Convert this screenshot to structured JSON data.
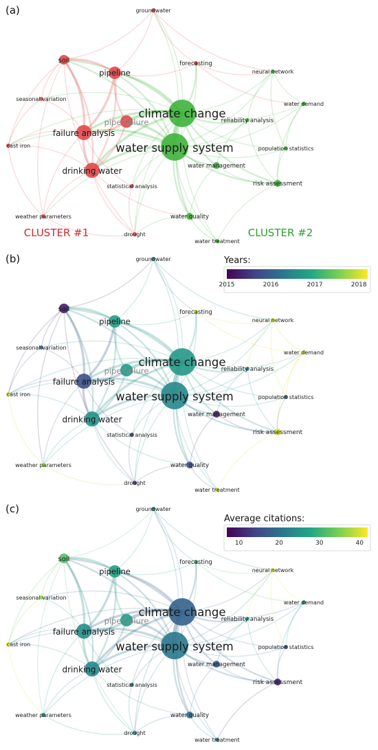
{
  "panels": [
    {
      "id": "a",
      "label": "(a)",
      "mode": "cluster",
      "legend": null,
      "cluster_labels": [
        {
          "text": "CLUSTER #1",
          "color": "#d62728"
        },
        {
          "text": "CLUSTER #2",
          "color": "#2ca02c"
        }
      ]
    },
    {
      "id": "b",
      "label": "(b)",
      "mode": "value_years",
      "legend": {
        "title": "Years:",
        "min": 2015,
        "max": 2018.2,
        "ticks": [
          "2015",
          "2016",
          "2017",
          "2018"
        ],
        "tick_values": [
          2015,
          2016,
          2017,
          2018
        ]
      }
    },
    {
      "id": "c",
      "label": "(c)",
      "mode": "value_citations",
      "legend": {
        "title": "Average citations:",
        "min": 7,
        "max": 42,
        "ticks": [
          "10",
          "20",
          "30",
          "40"
        ],
        "tick_values": [
          10,
          20,
          30,
          40
        ]
      }
    }
  ],
  "colors": {
    "cluster1": "#e0484b",
    "cluster2": "#3fb33c",
    "viridis": [
      "#440154",
      "#414487",
      "#2a788e",
      "#22a884",
      "#7ad151",
      "#fde725"
    ]
  },
  "nodes": [
    {
      "id": "climate-change",
      "label": "climate change",
      "cluster": 2,
      "weight": 10,
      "year": 2016.7,
      "citations": 18
    },
    {
      "id": "water-supply-system",
      "label": "water supply system",
      "cluster": 2,
      "weight": 10,
      "year": 2016.5,
      "citations": 21
    },
    {
      "id": "failure-analysis",
      "label": "failure analysis",
      "cluster": 1,
      "weight": 6,
      "year": 2015.8,
      "citations": 24
    },
    {
      "id": "drinking-water",
      "label": "drinking water",
      "cluster": 1,
      "weight": 6,
      "year": 2016.6,
      "citations": 23
    },
    {
      "id": "pipe-failure",
      "label": "pipe failure",
      "cluster": 1,
      "weight": 5,
      "year": 2016.7,
      "citations": 26
    },
    {
      "id": "pipeline",
      "label": "pipeline",
      "cluster": 1,
      "weight": 5,
      "year": 2016.8,
      "citations": 27
    },
    {
      "id": "soil",
      "label": "soil",
      "cluster": 1,
      "weight": 4,
      "year": 2015.3,
      "citations": 32
    },
    {
      "id": "groundwater",
      "label": "groundwater",
      "cluster": 1,
      "weight": 2,
      "year": 2016.5,
      "citations": 23
    },
    {
      "id": "forecasting",
      "label": "forecasting",
      "cluster": 1,
      "weight": 2,
      "year": 2018.0,
      "citations": 31
    },
    {
      "id": "seasonal-variation",
      "label": "seasonal variation",
      "cluster": 1,
      "weight": 2,
      "year": 2015.9,
      "citations": 36
    },
    {
      "id": "cast-iron",
      "label": "cast iron",
      "cluster": 1,
      "weight": 2,
      "year": 2018.0,
      "citations": 41
    },
    {
      "id": "statistical-analysis",
      "label": "statistical analysis",
      "cluster": 1,
      "weight": 2,
      "year": 2015.9,
      "citations": 22
    },
    {
      "id": "weather-parameters",
      "label": "weather parameters",
      "cluster": 1,
      "weight": 2,
      "year": 2017.8,
      "citations": 24
    },
    {
      "id": "drought",
      "label": "drought",
      "cluster": 1,
      "weight": 2,
      "year": 2015.5,
      "citations": 24
    },
    {
      "id": "neural-network",
      "label": "neural network",
      "cluster": 2,
      "weight": 2,
      "year": 2017.9,
      "citations": 40
    },
    {
      "id": "water-demand",
      "label": "water demand",
      "cluster": 2,
      "weight": 2,
      "year": 2018.0,
      "citations": 25
    },
    {
      "id": "reliability-analysis",
      "label": "reliability analysis",
      "cluster": 2,
      "weight": 2,
      "year": 2016.5,
      "citations": 26
    },
    {
      "id": "population-statistics",
      "label": "population statistics",
      "cluster": 2,
      "weight": 2,
      "year": 2016.0,
      "citations": 14
    },
    {
      "id": "water-management",
      "label": "water management",
      "cluster": 2,
      "weight": 3,
      "year": 2015.3,
      "citations": 16
    },
    {
      "id": "risk-assessment",
      "label": "risk assessment",
      "cluster": 2,
      "weight": 3,
      "year": 2018.0,
      "citations": 10
    },
    {
      "id": "water-quality",
      "label": "water quality",
      "cluster": 2,
      "weight": 3,
      "year": 2015.8,
      "citations": 20
    },
    {
      "id": "water-treatment",
      "label": "water treatment",
      "cluster": 2,
      "weight": 2,
      "year": 2018.0,
      "citations": 22
    }
  ],
  "edges": [
    [
      "climate-change",
      "water-supply-system",
      5
    ],
    [
      "climate-change",
      "pipe-failure",
      4
    ],
    [
      "climate-change",
      "failure-analysis",
      3
    ],
    [
      "climate-change",
      "pipeline",
      3
    ],
    [
      "climate-change",
      "drinking-water",
      3
    ],
    [
      "climate-change",
      "soil",
      2
    ],
    [
      "climate-change",
      "forecasting",
      2
    ],
    [
      "climate-change",
      "groundwater",
      1
    ],
    [
      "climate-change",
      "neural-network",
      1
    ],
    [
      "climate-change",
      "water-demand",
      1
    ],
    [
      "climate-change",
      "reliability-analysis",
      2
    ],
    [
      "climate-change",
      "population-statistics",
      1
    ],
    [
      "climate-change",
      "water-management",
      2
    ],
    [
      "climate-change",
      "risk-assessment",
      2
    ],
    [
      "climate-change",
      "water-quality",
      2
    ],
    [
      "climate-change",
      "water-treatment",
      1
    ],
    [
      "climate-change",
      "seasonal-variation",
      1
    ],
    [
      "climate-change",
      "cast-iron",
      1
    ],
    [
      "climate-change",
      "statistical-analysis",
      1
    ],
    [
      "climate-change",
      "drought",
      1
    ],
    [
      "water-supply-system",
      "failure-analysis",
      3
    ],
    [
      "water-supply-system",
      "drinking-water",
      3
    ],
    [
      "water-supply-system",
      "pipe-failure",
      3
    ],
    [
      "water-supply-system",
      "pipeline",
      2
    ],
    [
      "water-supply-system",
      "soil",
      2
    ],
    [
      "water-supply-system",
      "water-management",
      2
    ],
    [
      "water-supply-system",
      "risk-assessment",
      2
    ],
    [
      "water-supply-system",
      "water-quality",
      2
    ],
    [
      "water-supply-system",
      "reliability-analysis",
      1
    ],
    [
      "water-supply-system",
      "population-statistics",
      1
    ],
    [
      "water-supply-system",
      "water-demand",
      1
    ],
    [
      "water-supply-system",
      "neural-network",
      1
    ],
    [
      "water-supply-system",
      "water-treatment",
      1
    ],
    [
      "water-supply-system",
      "statistical-analysis",
      1
    ],
    [
      "water-supply-system",
      "drought",
      1
    ],
    [
      "water-supply-system",
      "weather-parameters",
      1
    ],
    [
      "water-supply-system",
      "cast-iron",
      1
    ],
    [
      "water-supply-system",
      "groundwater",
      1
    ],
    [
      "water-supply-system",
      "forecasting",
      1
    ],
    [
      "failure-analysis",
      "drinking-water",
      3
    ],
    [
      "failure-analysis",
      "pipe-failure",
      3
    ],
    [
      "failure-analysis",
      "pipeline",
      3
    ],
    [
      "failure-analysis",
      "soil",
      3
    ],
    [
      "failure-analysis",
      "seasonal-variation",
      1
    ],
    [
      "failure-analysis",
      "cast-iron",
      1
    ],
    [
      "failure-analysis",
      "statistical-analysis",
      1
    ],
    [
      "failure-analysis",
      "weather-parameters",
      1
    ],
    [
      "drinking-water",
      "pipe-failure",
      2
    ],
    [
      "drinking-water",
      "pipeline",
      2
    ],
    [
      "drinking-water",
      "soil",
      2
    ],
    [
      "drinking-water",
      "drought",
      1
    ],
    [
      "drinking-water",
      "water-quality",
      1
    ],
    [
      "drinking-water",
      "weather-parameters",
      1
    ],
    [
      "drinking-water",
      "cast-iron",
      1
    ],
    [
      "pipeline",
      "soil",
      3
    ],
    [
      "pipeline",
      "pipe-failure",
      2
    ],
    [
      "pipeline",
      "groundwater",
      1
    ],
    [
      "pipeline",
      "forecasting",
      1
    ],
    [
      "soil",
      "seasonal-variation",
      1
    ],
    [
      "soil",
      "cast-iron",
      1
    ],
    [
      "soil",
      "weather-parameters",
      1
    ],
    [
      "soil",
      "groundwater",
      1
    ],
    [
      "soil",
      "drought",
      1
    ],
    [
      "groundwater",
      "forecasting",
      1
    ],
    [
      "groundwater",
      "neural-network",
      1
    ],
    [
      "forecasting",
      "neural-network",
      1
    ],
    [
      "forecasting",
      "water-demand",
      1
    ],
    [
      "neural-network",
      "water-demand",
      1
    ],
    [
      "neural-network",
      "reliability-analysis",
      1
    ],
    [
      "neural-network",
      "population-statistics",
      1
    ],
    [
      "water-demand",
      "population-statistics",
      1
    ],
    [
      "water-demand",
      "risk-assessment",
      1
    ],
    [
      "population-statistics",
      "risk-assessment",
      1
    ],
    [
      "reliability-analysis",
      "water-management",
      1
    ],
    [
      "reliability-analysis",
      "risk-assessment",
      1
    ],
    [
      "water-management",
      "water-quality",
      1
    ],
    [
      "water-management",
      "risk-assessment",
      1
    ],
    [
      "water-quality",
      "water-treatment",
      1
    ],
    [
      "water-quality",
      "drought",
      1
    ],
    [
      "risk-assessment",
      "water-treatment",
      1
    ],
    [
      "statistical-analysis",
      "drought",
      1
    ],
    [
      "weather-parameters",
      "drought",
      1
    ],
    [
      "cast-iron",
      "weather-parameters",
      1
    ],
    [
      "seasonal-variation",
      "cast-iron",
      1
    ]
  ]
}
